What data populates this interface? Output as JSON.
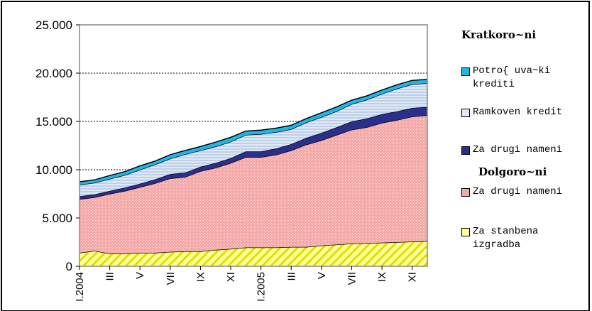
{
  "chart_data": {
    "type": "area",
    "stacked": true,
    "title": "",
    "xlabel": "",
    "ylabel": "",
    "ylim": [
      0,
      25000
    ],
    "y_ticks": [
      "0",
      "5.000",
      "10.000",
      "15.000",
      "20.000",
      "25.000"
    ],
    "x_tick_labels": [
      "I.2004",
      "III",
      "V",
      "VII",
      "IX",
      "XI",
      "I.2005",
      "III",
      "V",
      "VII",
      "IX",
      "XI"
    ],
    "grid": "horizontal dotted",
    "legend_position": "right",
    "legend_groups": [
      "Kratkoro~ni",
      "Dolgoro~ni"
    ],
    "categories": [
      "I.2004",
      "II",
      "III",
      "IV",
      "V",
      "VI",
      "VII",
      "VIII",
      "IX",
      "X",
      "XI",
      "XII",
      "I.2005",
      "II",
      "III",
      "IV",
      "V",
      "VI",
      "VII",
      "VIII",
      "IX",
      "X",
      "XI",
      "XII"
    ],
    "series": [
      {
        "name": "Za stanbena izgradba",
        "color": "#ffff99",
        "values": [
          1400,
          1600,
          1300,
          1300,
          1400,
          1400,
          1500,
          1550,
          1550,
          1700,
          1800,
          1950,
          1950,
          1950,
          2000,
          2000,
          2150,
          2250,
          2350,
          2400,
          2450,
          2500,
          2550,
          2600
        ]
      },
      {
        "name": "Za drugi nameni",
        "color": "#f4a9a9",
        "values": [
          5550,
          5550,
          6200,
          6500,
          6800,
          7200,
          7600,
          7700,
          8300,
          8500,
          8900,
          9350,
          9350,
          9600,
          10000,
          10600,
          10900,
          11350,
          11800,
          12000,
          12400,
          12650,
          12950,
          13050
        ]
      },
      {
        "name": "Za drugi nameni",
        "color": "#2b2f8c",
        "values": [
          300,
          300,
          300,
          350,
          350,
          400,
          450,
          450,
          450,
          500,
          500,
          600,
          600,
          650,
          650,
          700,
          750,
          800,
          850,
          900,
          900,
          900,
          900,
          850
        ]
      },
      {
        "name": "Ramkoven kredit",
        "color": "#dfe9f5",
        "values": [
          1200,
          1200,
          1250,
          1300,
          1450,
          1550,
          1600,
          1900,
          1700,
          1700,
          1700,
          1700,
          1800,
          1700,
          1550,
          1600,
          1650,
          1650,
          1800,
          1950,
          2100,
          2350,
          2450,
          2450
        ]
      },
      {
        "name": "Potro{ uva~ki krediti",
        "color": "#1fb7e6",
        "values": [
          300,
          300,
          350,
          350,
          400,
          350,
          400,
          400,
          400,
          450,
          450,
          400,
          400,
          400,
          400,
          400,
          450,
          450,
          400,
          400,
          400,
          400,
          400,
          400
        ]
      }
    ]
  }
}
